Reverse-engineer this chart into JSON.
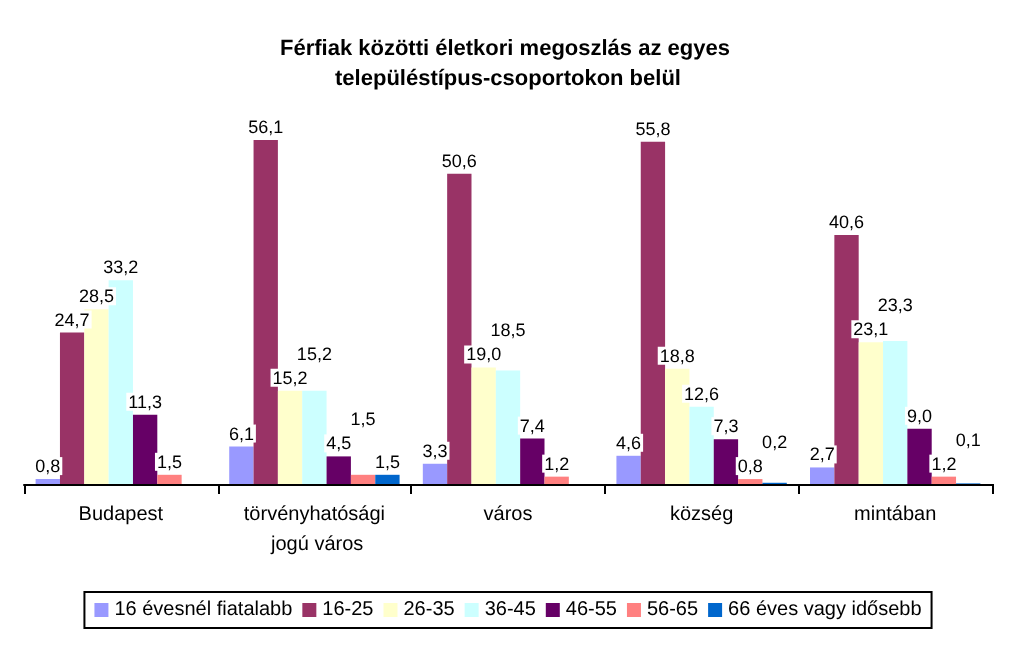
{
  "chart_data": {
    "type": "bar",
    "title": "Férfiak közötti életkori megoszlás az egyes településtípus-csoportokon belül",
    "categories": [
      "Budapest",
      "törvényhatósági jogú város",
      "város",
      "község",
      "mintában"
    ],
    "series": [
      {
        "name": "16 évesnél fiatalabb",
        "color": "#9999ff",
        "values": [
          0.8,
          6.1,
          3.3,
          4.6,
          2.7
        ],
        "value_labels": [
          "0,8",
          "6,1",
          "3,3",
          "4,6",
          "2,7"
        ]
      },
      {
        "name": "16-25",
        "color": "#993366",
        "values": [
          24.7,
          56.1,
          50.6,
          55.8,
          40.6
        ],
        "value_labels": [
          "24,7",
          "56,1",
          "50,6",
          "55,8",
          "40,6"
        ]
      },
      {
        "name": "26-35",
        "color": "#ffffcc",
        "values": [
          28.5,
          15.2,
          19.0,
          18.8,
          23.1
        ],
        "value_labels": [
          "28,5",
          "15,2",
          "19,0",
          "18,8",
          "23,1"
        ]
      },
      {
        "name": "36-45",
        "color": "#ccffff",
        "values": [
          33.2,
          15.2,
          18.5,
          12.6,
          23.3
        ],
        "value_labels": [
          "33,2",
          "15,2",
          "18,5",
          "12,6",
          "23,3"
        ]
      },
      {
        "name": "46-55",
        "color": "#660066",
        "values": [
          11.3,
          4.5,
          7.4,
          7.3,
          9.0
        ],
        "value_labels": [
          "11,3",
          "4,5",
          "7,4",
          "7,3",
          "9,0"
        ]
      },
      {
        "name": "56-65",
        "color": "#ff8080",
        "values": [
          1.5,
          1.5,
          1.2,
          0.8,
          1.2
        ],
        "value_labels": [
          "1,5",
          "1,5",
          "1,2",
          "0,8",
          "1,2"
        ]
      },
      {
        "name": "66 éves vagy idősebb",
        "color": "#0066cc",
        "values": [
          null,
          1.5,
          null,
          0.2,
          0.1
        ],
        "value_labels": [
          null,
          "1,5",
          null,
          "0,2",
          "0,1"
        ]
      }
    ],
    "tick_labels": "x",
    "grid": false,
    "legend": "bottom"
  }
}
